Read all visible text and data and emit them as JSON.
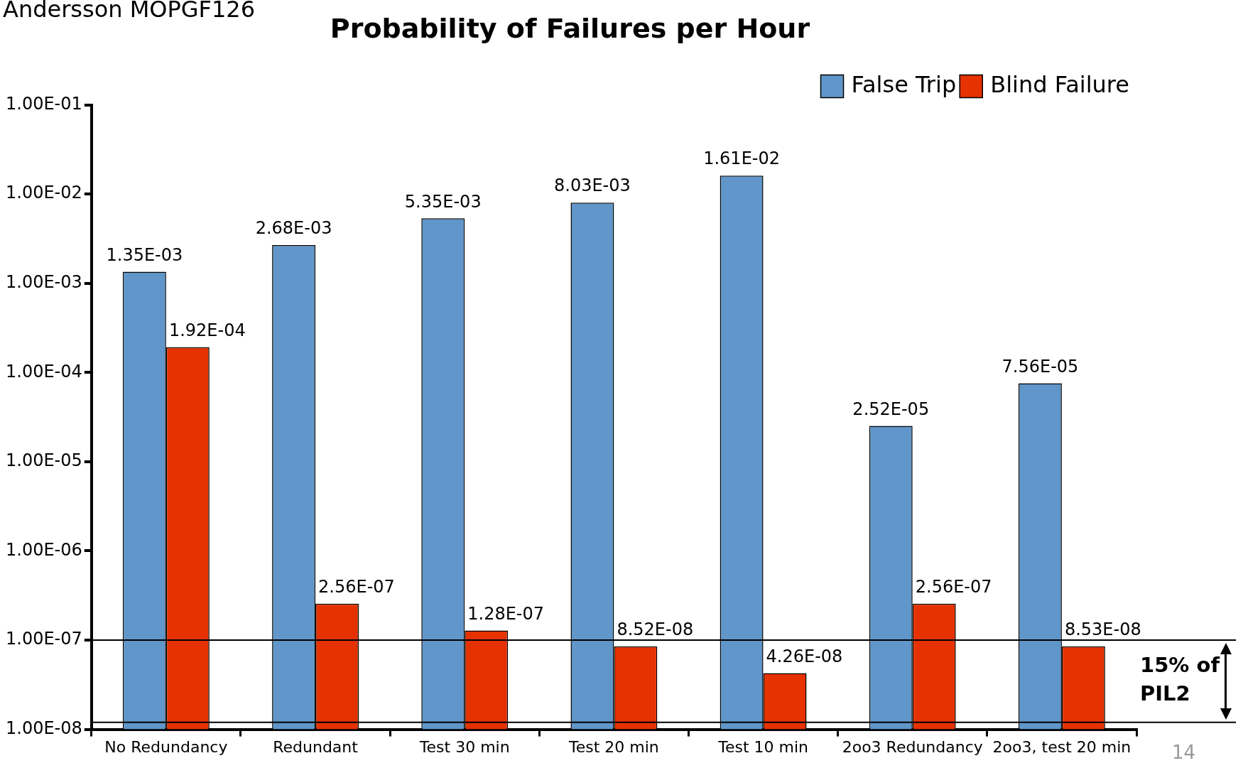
{
  "chart_data": {
    "type": "bar",
    "title": "Probability of Failures per Hour",
    "categories": [
      "No Redundancy",
      "Redundant",
      "Test 30 min",
      "Test 20 min",
      "Test 10 min",
      "2oo3 Redundancy",
      "2oo3, test 20 min"
    ],
    "series": [
      {
        "name": "False Trip",
        "color": "#6096c9",
        "values": [
          0.00135,
          0.00268,
          0.00535,
          0.00803,
          0.0161,
          2.52e-05,
          7.56e-05
        ],
        "value_labels": [
          "1.35E-03",
          "2.68E-03",
          "5.35E-03",
          "8.03E-03",
          "1.61E-02",
          "2.52E-05",
          "7.56E-05"
        ]
      },
      {
        "name": "Blind Failure",
        "color": "#e53200",
        "values": [
          0.000192,
          2.56e-07,
          1.28e-07,
          8.52e-08,
          4.26e-08,
          2.56e-07,
          8.53e-08
        ],
        "value_labels": [
          "1.92E-04",
          "2.56E-07",
          "1.28E-07",
          "8.52E-08",
          "4.26E-08",
          "2.56E-07",
          "8.53E-08"
        ]
      }
    ],
    "log": true,
    "ylim": [
      1e-08,
      0.1
    ],
    "yticks": [
      {
        "value": 1e-08,
        "label": "1.00E-08"
      },
      {
        "value": 1e-07,
        "label": "1.00E-07"
      },
      {
        "value": 1e-06,
        "label": "1.00E-06"
      },
      {
        "value": 1e-05,
        "label": "1.00E-05"
      },
      {
        "value": 0.0001,
        "label": "1.00E-04"
      },
      {
        "value": 0.001,
        "label": "1.00E-03"
      },
      {
        "value": 0.01,
        "label": "1.00E-02"
      },
      {
        "value": 0.1,
        "label": "1.00E-01"
      }
    ],
    "ref_lines": [
      {
        "axis": "y",
        "value": 1e-07,
        "color": "#000000"
      },
      {
        "axis": "y",
        "value": 1.2e-08,
        "color": "#000000"
      }
    ],
    "annotations": [
      "Andersson MOPGF126",
      "15% of PIL2",
      "14"
    ],
    "grid": false,
    "legend": "top right"
  }
}
